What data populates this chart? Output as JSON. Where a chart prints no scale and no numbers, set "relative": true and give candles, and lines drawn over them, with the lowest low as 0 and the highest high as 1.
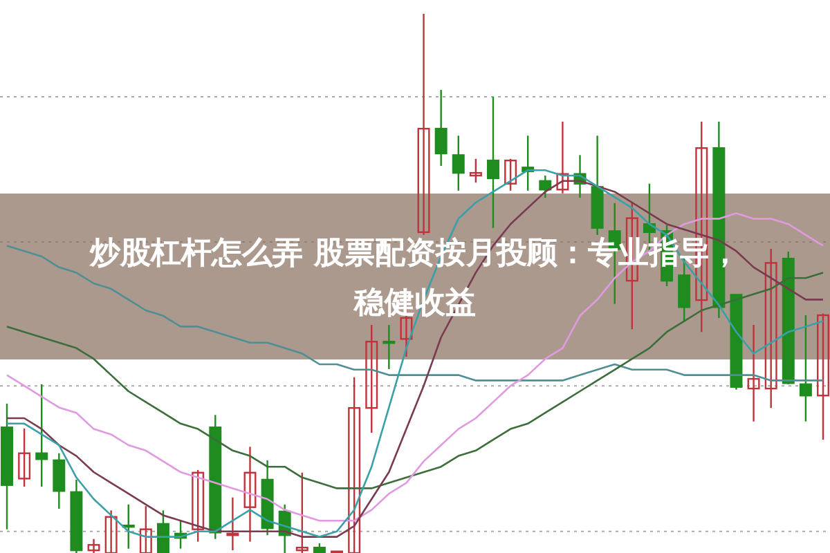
{
  "chart_data": {
    "type": "candlestick",
    "title": "炒股杠杆怎么弄 股票配资按月投顾：专业指导，稳健收益",
    "relative": true,
    "grid": true,
    "categories": [
      null,
      null,
      null,
      null,
      null,
      null,
      null,
      null,
      null,
      null,
      null,
      null,
      null,
      null,
      null,
      null,
      null,
      null,
      null,
      null,
      null,
      null,
      null,
      null,
      null,
      null,
      null,
      null,
      null,
      null,
      null,
      null,
      null,
      null,
      null,
      null,
      null,
      null,
      null,
      null,
      null,
      null,
      null,
      null,
      null,
      null,
      null,
      null
    ],
    "ohlc": [
      [
        0.233,
        0.277,
        0.044,
        0.126
      ],
      [
        0.138,
        0.231,
        0.123,
        0.185
      ],
      [
        0.185,
        0.313,
        0.123,
        0.174
      ],
      [
        0.172,
        0.185,
        0.082,
        0.115
      ],
      [
        0.113,
        0.136,
        0,
        0.005
      ],
      [
        0.005,
        0.026,
        0,
        0.015
      ],
      [
        0,
        0.079,
        0,
        0.067
      ],
      [
        0.051,
        0.09,
        0.008,
        0.049
      ],
      [
        0,
        0.087,
        0,
        0.044
      ],
      [
        0.054,
        0.079,
        0,
        0
      ],
      [
        0.036,
        0.059,
        0.008,
        0.028
      ],
      [
        0.044,
        0.154,
        0.021,
        0.149
      ],
      [
        0.233,
        0.256,
        0.026,
        0.038
      ],
      [
        0.033,
        0.103,
        0.005,
        0.036
      ],
      [
        0.085,
        0.197,
        0.021,
        0.149
      ],
      [
        0.136,
        0.172,
        0.033,
        0.046
      ],
      [
        0.077,
        0.09,
        0,
        0.033
      ],
      [
        0.005,
        0.149,
        0,
        0.01
      ],
      [
        0.01,
        0.018,
        0,
        0
      ],
      [
        0,
        0.003,
        0,
        0.003
      ],
      [
        0,
        0.326,
        0,
        0.269
      ],
      [
        0.269,
        0.423,
        0.223,
        0.392
      ],
      [
        0.392,
        0.423,
        0.341,
        0.39
      ],
      [
        0.397,
        0.479,
        0.364,
        0.436
      ],
      [
        0.595,
        1,
        0.59,
        0.787
      ],
      [
        0.787,
        0.859,
        0.718,
        0.741
      ],
      [
        0.738,
        0.774,
        0.672,
        0.705
      ],
      [
        0.7,
        0.731,
        0.687,
        0.705
      ],
      [
        0.728,
        0.846,
        0.603,
        0.695
      ],
      [
        0.685,
        0.731,
        0.672,
        0.728
      ],
      [
        0.715,
        0.774,
        0.672,
        0.708
      ],
      [
        0.69,
        0.7,
        0.659,
        0.674
      ],
      [
        0.674,
        0.8,
        0.667,
        0.703
      ],
      [
        0.703,
        0.738,
        0.659,
        0.685
      ],
      [
        0.679,
        0.774,
        0.59,
        0.603
      ],
      [
        0.597,
        0.649,
        0.462,
        0.564
      ],
      [
        0.505,
        0.649,
        0.415,
        0.621
      ],
      [
        0.61,
        0.685,
        0.551,
        0.595
      ],
      [
        0.597,
        0.608,
        0.495,
        0.505
      ],
      [
        0.515,
        0.551,
        0.431,
        0.456
      ],
      [
        0.469,
        0.8,
        0.41,
        0.751
      ],
      [
        0.751,
        0.8,
        0.436,
        0.456
      ],
      [
        0.479,
        0.479,
        0.303,
        0.308
      ],
      [
        0.305,
        0.423,
        0.244,
        0.323
      ],
      [
        0.305,
        0.564,
        0.269,
        0.538
      ],
      [
        0.546,
        0.559,
        0.313,
        0.315
      ],
      [
        0.313,
        0.441,
        0.244,
        0.292
      ],
      [
        0.292,
        0.444,
        0.21,
        0.441
      ]
    ],
    "colors": [
      "#1e8c1e",
      "#c0323c",
      "#1e8c1e",
      "#1e8c1e",
      "#1e8c1e",
      "#c0323c",
      "#c0323c",
      "#1e8c1e",
      "#c0323c",
      "#1e8c1e",
      "#1e8c1e",
      "#c0323c",
      "#1e8c1e",
      "#c0323c",
      "#c0323c",
      "#1e8c1e",
      "#1e8c1e",
      "#c0323c",
      "#1e8c1e",
      "#c0323c",
      "#c0323c",
      "#c0323c",
      "#1e8c1e",
      "#c0323c",
      "#c0323c",
      "#1e8c1e",
      "#1e8c1e",
      "#c0323c",
      "#1e8c1e",
      "#c0323c",
      "#1e8c1e",
      "#1e8c1e",
      "#c0323c",
      "#1e8c1e",
      "#1e8c1e",
      "#1e8c1e",
      "#c0323c",
      "#1e8c1e",
      "#1e8c1e",
      "#1e8c1e",
      "#c0323c",
      "#1e8c1e",
      "#1e8c1e",
      "#c0323c",
      "#c0323c",
      "#1e8c1e",
      "#1e8c1e",
      "#c0323c"
    ],
    "series": [
      {
        "type": "line",
        "color": "#4f8f94",
        "values": [
          0.57,
          0.56,
          0.55,
          0.53,
          0.52,
          0.5,
          0.49,
          0.47,
          0.45,
          0.44,
          0.42,
          0.42,
          0.41,
          0.4,
          0.39,
          0.39,
          0.38,
          0.37,
          0.35,
          0.35,
          0.34,
          0.34,
          0.33,
          0.33,
          0.33,
          0.33,
          0.33,
          0.32,
          0.32,
          0.32,
          0.32,
          0.32,
          0.32,
          0.33,
          0.34,
          0.35,
          0.34,
          0.34,
          0.34,
          0.33,
          0.33,
          0.33,
          0.33,
          0.33,
          0.32,
          0.32,
          0.32,
          0.32
        ]
      },
      {
        "type": "line",
        "color": "#3c6e3c",
        "values": [
          0.42,
          0.41,
          0.4,
          0.39,
          0.38,
          0.36,
          0.33,
          0.3,
          0.28,
          0.26,
          0.24,
          0.23,
          0.21,
          0.19,
          0.18,
          0.16,
          0.16,
          0.14,
          0.13,
          0.12,
          0.12,
          0.12,
          0.13,
          0.14,
          0.15,
          0.16,
          0.18,
          0.19,
          0.21,
          0.23,
          0.24,
          0.26,
          0.28,
          0.3,
          0.32,
          0.34,
          0.36,
          0.38,
          0.41,
          0.43,
          0.45,
          0.46,
          0.47,
          0.48,
          0.49,
          0.51,
          0.51,
          0.52
        ]
      },
      {
        "type": "line",
        "color": "#e09ae0",
        "values": [
          0.33,
          0.31,
          0.29,
          0.27,
          0.26,
          0.23,
          0.22,
          0.2,
          0.19,
          0.17,
          0.15,
          0.14,
          0.13,
          0.12,
          0.11,
          0.1,
          0.08,
          0.07,
          0.06,
          0.06,
          0.06,
          0.08,
          0.11,
          0.13,
          0.17,
          0.2,
          0.23,
          0.25,
          0.28,
          0.31,
          0.33,
          0.36,
          0.38,
          0.44,
          0.47,
          0.51,
          0.54,
          0.56,
          0.59,
          0.61,
          0.62,
          0.62,
          0.63,
          0.62,
          0.62,
          0.61,
          0.59,
          0.57
        ]
      },
      {
        "type": "line",
        "color": "#7a3a50",
        "values": [
          0.25,
          0.25,
          0.23,
          0.2,
          0.18,
          0.15,
          0.13,
          0.11,
          0.09,
          0.07,
          0.06,
          0.05,
          0.04,
          0.04,
          0.04,
          0.04,
          0.04,
          0.03,
          0.03,
          0.03,
          0.05,
          0.1,
          0.15,
          0.23,
          0.31,
          0.4,
          0.46,
          0.52,
          0.57,
          0.61,
          0.64,
          0.67,
          0.69,
          0.69,
          0.68,
          0.67,
          0.65,
          0.63,
          0.61,
          0.6,
          0.59,
          0.58,
          0.56,
          0.53,
          0.51,
          0.49,
          0.47,
          0.47
        ]
      },
      {
        "type": "line",
        "color": "#3aa0a8",
        "values": [
          0.24,
          0.24,
          0.22,
          0.2,
          0.14,
          0.1,
          0.07,
          0.04,
          0.03,
          0.03,
          0.03,
          0.04,
          0.04,
          0.06,
          0.08,
          0.06,
          0.05,
          0.04,
          0.03,
          0.04,
          0.08,
          0.16,
          0.27,
          0.38,
          0.47,
          0.55,
          0.62,
          0.65,
          0.67,
          0.69,
          0.71,
          0.71,
          0.7,
          0.7,
          0.68,
          0.66,
          0.64,
          0.61,
          0.59,
          0.54,
          0.5,
          0.46,
          0.41,
          0.37,
          0.39,
          0.41,
          0.42,
          0.43
        ]
      }
    ]
  }
}
